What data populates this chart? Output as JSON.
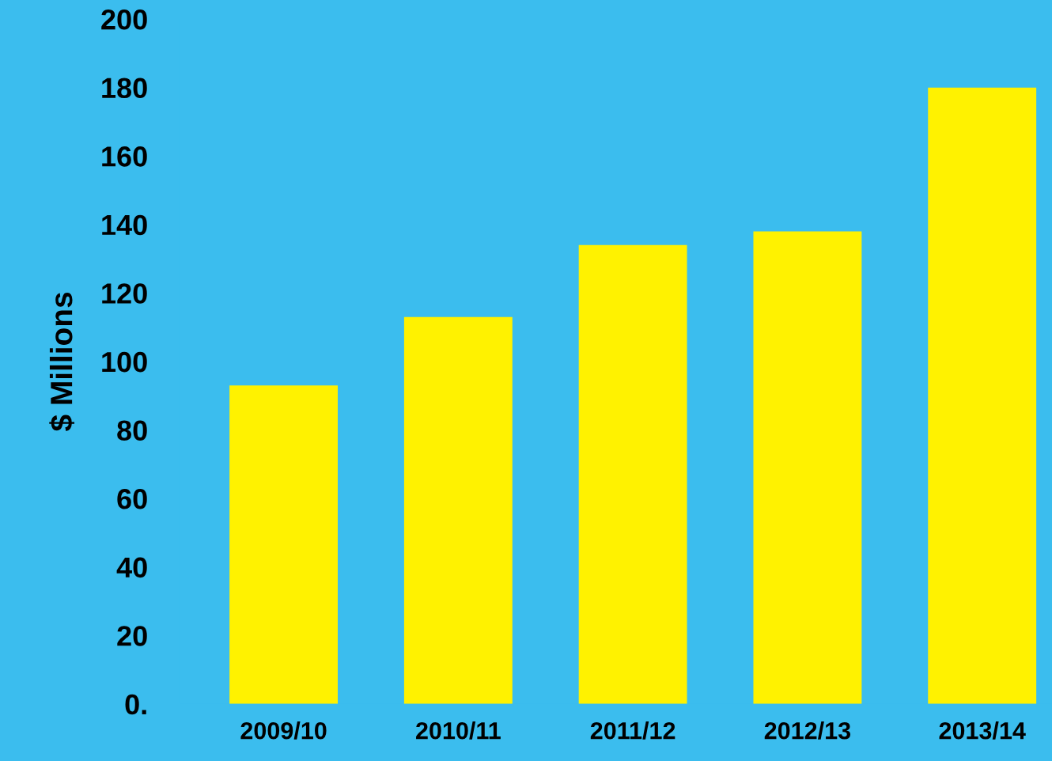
{
  "chart_data": {
    "type": "bar",
    "ylabel": "$ Millions",
    "categories": [
      "2009/10",
      "2010/11",
      "2011/12",
      "2012/13",
      "2013/14"
    ],
    "values": [
      93,
      113,
      134,
      138,
      180
    ],
    "color": "#fff200",
    "ylim": [
      0,
      200
    ],
    "yticks": [
      {
        "value": 0,
        "label": "0."
      },
      20,
      40,
      60,
      80,
      100,
      120,
      140,
      160,
      180,
      200
    ],
    "grid": false,
    "legend": false
  }
}
